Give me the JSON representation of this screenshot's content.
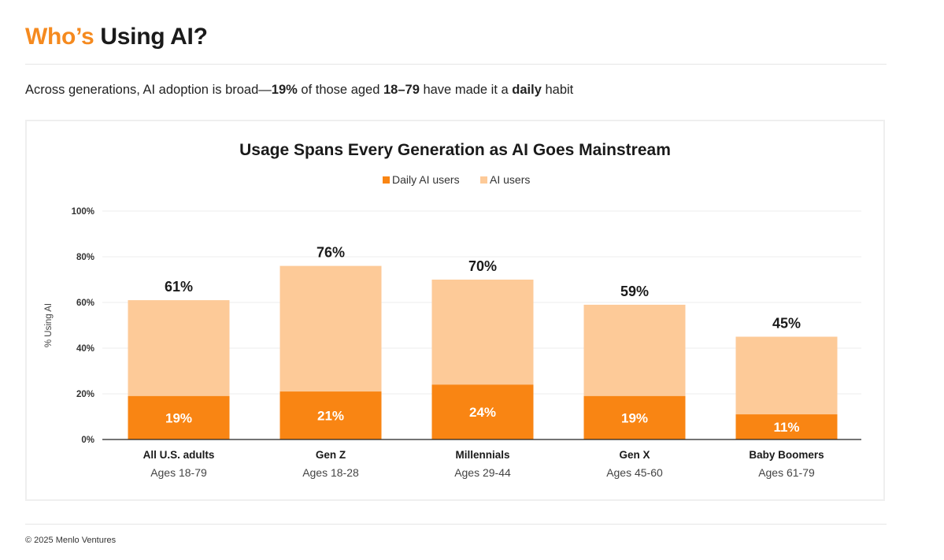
{
  "header": {
    "title_accent": "Who’s",
    "title_rest": "Using AI?",
    "subtitle_parts": [
      {
        "text": "Across generations, AI adoption is broad—",
        "bold": false
      },
      {
        "text": "19%",
        "bold": true
      },
      {
        "text": " of those aged ",
        "bold": false
      },
      {
        "text": "18–79",
        "bold": true
      },
      {
        "text": " have made it a ",
        "bold": false
      },
      {
        "text": "daily",
        "bold": true
      },
      {
        "text": " habit",
        "bold": false
      }
    ]
  },
  "footer": {
    "copyright": "© 2025 Menlo Ventures"
  },
  "chart_data": {
    "type": "bar",
    "title": "Usage Spans Every Generation as AI Goes Mainstream",
    "ylabel": "% Using AI",
    "xlabel": "",
    "ylim": [
      0,
      100
    ],
    "yticks": [
      "0%",
      "20%",
      "40%",
      "60%",
      "80%",
      "100%"
    ],
    "yticks_values": [
      0,
      20,
      40,
      60,
      80,
      100
    ],
    "grid": true,
    "legend_position": "top-center",
    "categories": [
      "All U.S. adults",
      "Gen Z",
      "Millennials",
      "Gen X",
      "Baby Boomers"
    ],
    "category_sublabels": [
      "Ages 18-79",
      "Ages 18-28",
      "Ages 29-44",
      "Ages 45-60",
      "Ages 61-79"
    ],
    "series": [
      {
        "name": "Daily AI users",
        "color": "#f98513",
        "values": [
          19,
          21,
          24,
          19,
          11
        ],
        "labels": [
          "19%",
          "21%",
          "24%",
          "19%",
          "11%"
        ]
      },
      {
        "name": "AI users",
        "color": "#fdca98",
        "values": [
          61,
          76,
          70,
          59,
          45
        ],
        "labels": [
          "61%",
          "76%",
          "70%",
          "59%",
          "45%"
        ]
      }
    ]
  }
}
